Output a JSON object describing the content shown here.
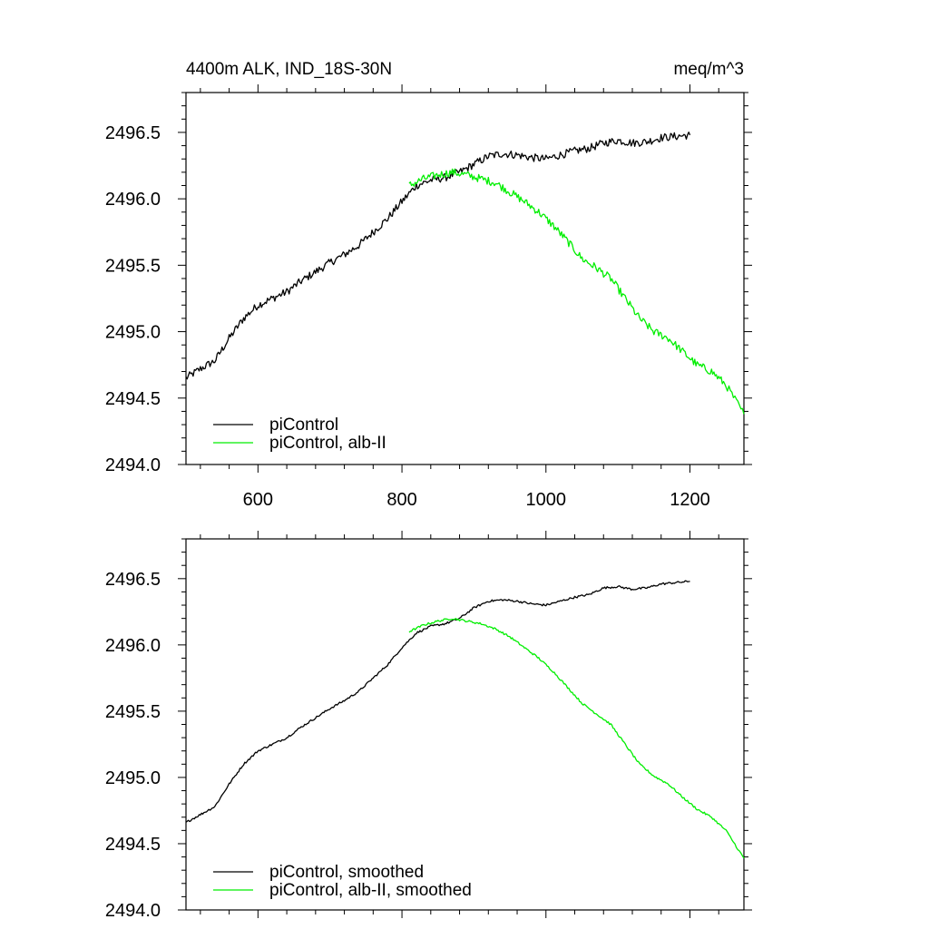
{
  "chart_data": [
    {
      "type": "line",
      "panel": "top",
      "title_left": "4400m ALK, IND_18S-30N",
      "title_right": "meq/m^3",
      "xlabel": "",
      "ylabel": "",
      "xlim": [
        500,
        1275
      ],
      "ylim": [
        2494.0,
        2496.8
      ],
      "xticks": [
        600,
        800,
        1000,
        1200
      ],
      "xtick_labels": [
        "600",
        "800",
        "1000",
        "1200"
      ],
      "yticks": [
        2494.0,
        2494.5,
        2495.0,
        2495.5,
        2496.0,
        2496.5
      ],
      "ytick_labels": [
        "2494.0",
        "2494.5",
        "2495.0",
        "2495.5",
        "2496.0",
        "2496.5"
      ],
      "noise": 0.03,
      "legend_position": "bottom-left",
      "series": [
        {
          "name": "piControl",
          "color": "#000000",
          "x": [
            500,
            520,
            540,
            560,
            580,
            600,
            620,
            640,
            660,
            680,
            700,
            720,
            740,
            760,
            780,
            800,
            820,
            840,
            860,
            880,
            900,
            920,
            940,
            960,
            980,
            1000,
            1020,
            1040,
            1060,
            1080,
            1100,
            1120,
            1140,
            1160,
            1180,
            1200
          ],
          "y": [
            2494.65,
            2494.72,
            2494.78,
            2494.95,
            2495.1,
            2495.2,
            2495.25,
            2495.3,
            2495.38,
            2495.45,
            2495.52,
            2495.58,
            2495.65,
            2495.75,
            2495.85,
            2495.98,
            2496.1,
            2496.14,
            2496.16,
            2496.2,
            2496.26,
            2496.32,
            2496.34,
            2496.33,
            2496.31,
            2496.3,
            2496.33,
            2496.36,
            2496.38,
            2496.42,
            2496.44,
            2496.42,
            2496.43,
            2496.46,
            2496.47,
            2496.48
          ]
        },
        {
          "name": "piControl, alb-II",
          "color": "#00ee00",
          "x": [
            810,
            830,
            850,
            870,
            890,
            910,
            930,
            950,
            970,
            990,
            1010,
            1030,
            1050,
            1070,
            1090,
            1110,
            1130,
            1150,
            1170,
            1190,
            1210,
            1230,
            1250,
            1275
          ],
          "y": [
            2496.1,
            2496.15,
            2496.18,
            2496.2,
            2496.18,
            2496.15,
            2496.12,
            2496.05,
            2495.98,
            2495.9,
            2495.8,
            2495.68,
            2495.55,
            2495.48,
            2495.4,
            2495.25,
            2495.1,
            2495.0,
            2494.95,
            2494.85,
            2494.75,
            2494.7,
            2494.6,
            2494.38
          ]
        }
      ]
    },
    {
      "type": "line",
      "panel": "bottom",
      "title_left": "",
      "title_right": "",
      "xlabel": "",
      "ylabel": "",
      "xlim": [
        500,
        1275
      ],
      "ylim": [
        2494.0,
        2496.8
      ],
      "xticks": [
        600,
        800,
        1000,
        1200
      ],
      "xtick_labels": [],
      "yticks": [
        2494.0,
        2494.5,
        2495.0,
        2495.5,
        2496.0,
        2496.5
      ],
      "ytick_labels": [
        "2494.0",
        "2494.5",
        "2495.0",
        "2495.5",
        "2496.0",
        "2496.5"
      ],
      "noise": 0.008,
      "legend_position": "bottom-left",
      "series": [
        {
          "name": "piControl, smoothed",
          "color": "#000000",
          "x": [
            500,
            520,
            540,
            560,
            580,
            600,
            620,
            640,
            660,
            680,
            700,
            720,
            740,
            760,
            780,
            800,
            820,
            840,
            860,
            880,
            900,
            920,
            940,
            960,
            980,
            1000,
            1020,
            1040,
            1060,
            1080,
            1100,
            1120,
            1140,
            1160,
            1180,
            1200
          ],
          "y": [
            2494.66,
            2494.72,
            2494.78,
            2494.95,
            2495.1,
            2495.2,
            2495.25,
            2495.3,
            2495.38,
            2495.45,
            2495.52,
            2495.58,
            2495.65,
            2495.75,
            2495.85,
            2495.98,
            2496.09,
            2496.14,
            2496.16,
            2496.2,
            2496.28,
            2496.33,
            2496.34,
            2496.33,
            2496.31,
            2496.3,
            2496.33,
            2496.36,
            2496.38,
            2496.43,
            2496.44,
            2496.42,
            2496.43,
            2496.46,
            2496.47,
            2496.48
          ]
        },
        {
          "name": "piControl, alb-II, smoothed",
          "color": "#00ee00",
          "x": [
            810,
            830,
            850,
            870,
            890,
            910,
            930,
            950,
            970,
            990,
            1010,
            1030,
            1050,
            1070,
            1090,
            1110,
            1130,
            1150,
            1170,
            1190,
            1210,
            1230,
            1250,
            1275
          ],
          "y": [
            2496.1,
            2496.15,
            2496.18,
            2496.2,
            2496.18,
            2496.16,
            2496.12,
            2496.06,
            2495.98,
            2495.9,
            2495.8,
            2495.68,
            2495.56,
            2495.48,
            2495.4,
            2495.25,
            2495.1,
            2495.01,
            2494.95,
            2494.85,
            2494.76,
            2494.7,
            2494.6,
            2494.39
          ]
        }
      ]
    }
  ]
}
